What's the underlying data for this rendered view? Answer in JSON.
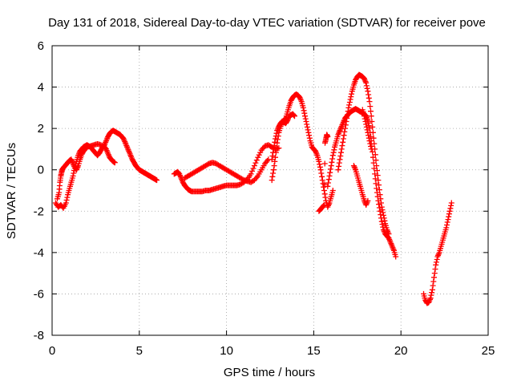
{
  "chart_data": {
    "type": "scatter",
    "title": "Day 131 of 2018, Sidereal Day-to-day VTEC variation (SDTVAR) for receiver pove",
    "xlabel": "GPS time / hours",
    "ylabel": "SDTVAR / TECUs",
    "xlim": [
      0,
      25
    ],
    "ylim": [
      -8,
      6
    ],
    "xticks": [
      "0",
      "5",
      "10",
      "15",
      "20",
      "25"
    ],
    "yticks": [
      "-8",
      "-6",
      "-4",
      "-2",
      "0",
      "2",
      "4",
      "6"
    ],
    "grid": true,
    "legend": "none",
    "marker": "plus",
    "color": "#ff0000",
    "series": [
      {
        "values": [
          [
            0.2,
            -1.6
          ],
          [
            0.35,
            -1.8
          ],
          [
            0.5,
            -1.7
          ],
          [
            0.65,
            -1.85
          ],
          [
            0.8,
            -1.6
          ],
          [
            0.9,
            -1.2
          ],
          [
            1.0,
            -0.9
          ],
          [
            1.1,
            -0.6
          ],
          [
            1.2,
            -0.3
          ],
          [
            1.3,
            0.1
          ],
          [
            1.4,
            0.4
          ],
          [
            1.5,
            0.7
          ],
          [
            1.6,
            0.9
          ],
          [
            1.7,
            1.0
          ],
          [
            1.8,
            1.1
          ],
          [
            1.9,
            1.15
          ],
          [
            2.0,
            1.2
          ],
          [
            2.1,
            1.15
          ],
          [
            2.2,
            1.1
          ],
          [
            2.3,
            1.0
          ],
          [
            2.4,
            0.9
          ],
          [
            2.5,
            0.8
          ],
          [
            2.6,
            0.7
          ],
          [
            2.7,
            0.8
          ],
          [
            2.8,
            0.95
          ],
          [
            2.9,
            1.1
          ],
          [
            3.0,
            1.2
          ],
          [
            3.1,
            1.4
          ],
          [
            3.2,
            1.6
          ],
          [
            3.3,
            1.75
          ],
          [
            3.4,
            1.85
          ],
          [
            3.5,
            1.9
          ],
          [
            3.6,
            1.85
          ],
          [
            3.7,
            1.8
          ],
          [
            3.8,
            1.75
          ],
          [
            3.9,
            1.7
          ],
          [
            4.0,
            1.6
          ],
          [
            4.1,
            1.5
          ],
          [
            4.2,
            1.3
          ],
          [
            4.3,
            1.1
          ],
          [
            4.4,
            0.9
          ],
          [
            4.5,
            0.7
          ],
          [
            4.6,
            0.5
          ],
          [
            4.7,
            0.35
          ],
          [
            4.8,
            0.2
          ],
          [
            4.9,
            0.1
          ],
          [
            5.0,
            0.0
          ],
          [
            5.1,
            -0.05
          ],
          [
            5.2,
            -0.1
          ],
          [
            5.3,
            -0.15
          ],
          [
            5.4,
            -0.2
          ],
          [
            5.5,
            -0.25
          ],
          [
            5.6,
            -0.3
          ],
          [
            5.7,
            -0.35
          ],
          [
            5.8,
            -0.4
          ],
          [
            5.9,
            -0.45
          ],
          [
            6.0,
            -0.5
          ]
        ]
      },
      {
        "values": [
          [
            0.3,
            -1.4
          ],
          [
            0.4,
            -1.1
          ],
          [
            0.45,
            -0.6
          ],
          [
            0.5,
            -0.3
          ],
          [
            0.55,
            -0.1
          ],
          [
            0.6,
            0.05
          ],
          [
            0.7,
            0.15
          ],
          [
            0.8,
            0.25
          ],
          [
            0.9,
            0.35
          ],
          [
            1.0,
            0.45
          ],
          [
            1.1,
            0.5
          ],
          [
            1.2,
            0.3
          ],
          [
            1.3,
            0.1
          ],
          [
            1.4,
            0.0
          ],
          [
            1.5,
            0.2
          ],
          [
            1.6,
            0.5
          ],
          [
            1.7,
            0.75
          ],
          [
            1.8,
            0.9
          ],
          [
            1.9,
            1.0
          ],
          [
            2.0,
            1.1
          ],
          [
            2.2,
            1.15
          ],
          [
            2.4,
            1.2
          ],
          [
            2.6,
            1.25
          ],
          [
            2.8,
            1.2
          ],
          [
            3.0,
            1.1
          ],
          [
            3.1,
            1.0
          ],
          [
            3.2,
            0.8
          ],
          [
            3.3,
            0.6
          ],
          [
            3.4,
            0.5
          ],
          [
            3.5,
            0.4
          ],
          [
            3.6,
            0.35
          ]
        ]
      },
      {
        "values": [
          [
            7.0,
            -0.2
          ],
          [
            7.1,
            -0.15
          ],
          [
            7.2,
            -0.1
          ],
          [
            7.3,
            -0.2
          ],
          [
            7.4,
            -0.4
          ],
          [
            7.5,
            -0.6
          ],
          [
            7.6,
            -0.75
          ],
          [
            7.7,
            -0.85
          ],
          [
            7.8,
            -0.95
          ],
          [
            7.9,
            -1.0
          ],
          [
            8.0,
            -1.05
          ],
          [
            8.2,
            -1.05
          ],
          [
            8.4,
            -1.05
          ],
          [
            8.6,
            -1.05
          ],
          [
            8.8,
            -1.0
          ],
          [
            9.0,
            -1.0
          ],
          [
            9.2,
            -0.95
          ],
          [
            9.4,
            -0.9
          ],
          [
            9.6,
            -0.85
          ],
          [
            9.8,
            -0.8
          ],
          [
            10.0,
            -0.75
          ],
          [
            10.2,
            -0.75
          ],
          [
            10.4,
            -0.75
          ],
          [
            10.6,
            -0.75
          ],
          [
            10.8,
            -0.7
          ],
          [
            11.0,
            -0.6
          ],
          [
            11.2,
            -0.45
          ],
          [
            11.4,
            -0.2
          ],
          [
            11.6,
            0.2
          ],
          [
            11.8,
            0.6
          ],
          [
            12.0,
            0.95
          ],
          [
            12.2,
            1.15
          ],
          [
            12.4,
            1.2
          ],
          [
            12.6,
            1.1
          ],
          [
            12.8,
            1.0
          ],
          [
            13.0,
            1.05
          ]
        ]
      },
      {
        "values": [
          [
            7.6,
            -0.4
          ],
          [
            7.8,
            -0.3
          ],
          [
            8.0,
            -0.2
          ],
          [
            8.2,
            -0.1
          ],
          [
            8.4,
            0.0
          ],
          [
            8.6,
            0.1
          ],
          [
            8.8,
            0.2
          ],
          [
            9.0,
            0.3
          ],
          [
            9.2,
            0.35
          ],
          [
            9.4,
            0.3
          ],
          [
            9.6,
            0.2
          ],
          [
            9.8,
            0.1
          ],
          [
            10.0,
            0.0
          ],
          [
            10.2,
            -0.1
          ],
          [
            10.4,
            -0.2
          ],
          [
            10.6,
            -0.3
          ],
          [
            10.8,
            -0.4
          ],
          [
            11.0,
            -0.5
          ],
          [
            11.2,
            -0.55
          ],
          [
            11.4,
            -0.6
          ],
          [
            11.6,
            -0.5
          ],
          [
            11.8,
            -0.3
          ],
          [
            12.0,
            0.0
          ],
          [
            12.2,
            0.3
          ],
          [
            12.4,
            0.5
          ]
        ]
      },
      {
        "values": [
          [
            12.6,
            0.5
          ],
          [
            12.7,
            1.0
          ],
          [
            12.8,
            1.5
          ],
          [
            12.9,
            1.9
          ],
          [
            13.0,
            2.1
          ],
          [
            13.1,
            2.25
          ],
          [
            13.2,
            2.35
          ],
          [
            13.3,
            2.3
          ],
          [
            13.4,
            2.25
          ],
          [
            13.5,
            2.4
          ],
          [
            13.6,
            2.6
          ],
          [
            13.7,
            2.65
          ],
          [
            13.8,
            2.7
          ],
          [
            13.9,
            2.6
          ]
        ]
      },
      {
        "values": [
          [
            12.6,
            -0.5
          ],
          [
            12.7,
            0.0
          ],
          [
            12.8,
            0.6
          ],
          [
            12.9,
            1.3
          ],
          [
            13.0,
            1.8
          ],
          [
            13.1,
            2.1
          ],
          [
            13.2,
            2.3
          ],
          [
            13.3,
            2.4
          ],
          [
            13.4,
            2.5
          ],
          [
            13.5,
            2.8
          ],
          [
            13.6,
            3.1
          ],
          [
            13.7,
            3.35
          ],
          [
            13.8,
            3.5
          ],
          [
            13.9,
            3.6
          ],
          [
            14.0,
            3.65
          ],
          [
            14.1,
            3.6
          ],
          [
            14.2,
            3.5
          ],
          [
            14.3,
            3.3
          ],
          [
            14.4,
            3.0
          ],
          [
            14.5,
            2.6
          ],
          [
            14.6,
            2.2
          ],
          [
            14.7,
            1.8
          ],
          [
            14.8,
            1.4
          ],
          [
            14.9,
            1.1
          ],
          [
            15.0,
            1.0
          ],
          [
            15.1,
            0.9
          ],
          [
            15.2,
            0.7
          ],
          [
            15.3,
            0.4
          ],
          [
            15.4,
            0.0
          ],
          [
            15.5,
            -0.5
          ],
          [
            15.6,
            -1.0
          ],
          [
            15.7,
            -1.5
          ],
          [
            15.8,
            -1.8
          ],
          [
            15.9,
            -1.6
          ],
          [
            16.0,
            -1.3
          ],
          [
            16.1,
            -1.0
          ]
        ]
      },
      {
        "values": [
          [
            15.3,
            -2.0
          ],
          [
            15.4,
            -1.9
          ],
          [
            15.5,
            -1.8
          ],
          [
            15.6,
            -1.7
          ],
          [
            15.65,
            1.3
          ],
          [
            15.7,
            1.5
          ],
          [
            15.75,
            1.7
          ],
          [
            15.8,
            1.6
          ]
        ]
      },
      {
        "values": [
          [
            15.8,
            -0.8
          ],
          [
            15.9,
            -0.3
          ],
          [
            16.0,
            0.2
          ],
          [
            16.1,
            0.7
          ],
          [
            16.2,
            1.1
          ],
          [
            16.3,
            1.4
          ],
          [
            16.4,
            1.7
          ],
          [
            16.5,
            1.9
          ],
          [
            16.6,
            2.1
          ],
          [
            16.7,
            2.3
          ],
          [
            16.8,
            2.5
          ],
          [
            16.9,
            2.6
          ],
          [
            17.0,
            2.7
          ],
          [
            17.1,
            2.8
          ],
          [
            17.2,
            2.85
          ],
          [
            17.3,
            2.9
          ],
          [
            17.4,
            2.95
          ],
          [
            17.5,
            2.9
          ],
          [
            17.6,
            2.85
          ],
          [
            17.7,
            2.8
          ],
          [
            17.8,
            2.75
          ],
          [
            17.9,
            2.7
          ],
          [
            18.0,
            2.6
          ],
          [
            18.1,
            2.4
          ],
          [
            18.2,
            2.0
          ],
          [
            18.3,
            1.4
          ],
          [
            18.4,
            0.6
          ],
          [
            18.5,
            -0.2
          ],
          [
            18.6,
            -0.9
          ],
          [
            18.7,
            -1.5
          ],
          [
            18.8,
            -2.0
          ],
          [
            18.9,
            -2.5
          ],
          [
            19.0,
            -2.9
          ],
          [
            19.1,
            -3.1
          ],
          [
            19.2,
            -3.2
          ],
          [
            19.3,
            -3.3
          ],
          [
            19.4,
            -3.5
          ],
          [
            19.5,
            -3.7
          ],
          [
            19.6,
            -3.9
          ],
          [
            19.7,
            -4.2
          ]
        ]
      },
      {
        "values": [
          [
            16.4,
            0.0
          ],
          [
            16.5,
            0.5
          ],
          [
            16.6,
            1.0
          ],
          [
            16.7,
            1.5
          ],
          [
            16.8,
            2.0
          ],
          [
            16.9,
            2.5
          ],
          [
            17.0,
            3.0
          ],
          [
            17.1,
            3.4
          ],
          [
            17.2,
            3.8
          ],
          [
            17.3,
            4.1
          ],
          [
            17.4,
            4.35
          ],
          [
            17.5,
            4.5
          ],
          [
            17.6,
            4.6
          ],
          [
            17.7,
            4.55
          ],
          [
            17.8,
            4.5
          ],
          [
            17.9,
            4.4
          ],
          [
            18.0,
            4.2
          ],
          [
            18.1,
            3.8
          ],
          [
            18.2,
            3.3
          ],
          [
            18.3,
            2.6
          ],
          [
            18.4,
            1.8
          ],
          [
            18.5,
            1.0
          ],
          [
            18.6,
            0.2
          ],
          [
            18.7,
            -0.5
          ],
          [
            18.8,
            -1.2
          ],
          [
            18.9,
            -1.8
          ],
          [
            19.0,
            -2.2
          ],
          [
            19.1,
            -2.6
          ],
          [
            19.2,
            -2.9
          ],
          [
            19.3,
            -3.1
          ]
        ]
      },
      {
        "values": [
          [
            17.3,
            0.2
          ],
          [
            17.4,
            0.0
          ],
          [
            17.5,
            -0.3
          ],
          [
            17.6,
            -0.6
          ],
          [
            17.7,
            -0.9
          ],
          [
            17.8,
            -1.2
          ],
          [
            17.9,
            -1.5
          ],
          [
            18.0,
            -1.7
          ],
          [
            18.1,
            -1.5
          ]
        ]
      },
      {
        "values": [
          [
            17.8,
            2.9
          ],
          [
            17.9,
            2.6
          ],
          [
            18.0,
            2.2
          ],
          [
            18.1,
            1.8
          ],
          [
            18.2,
            1.4
          ],
          [
            18.3,
            1.0
          ]
        ]
      },
      {
        "values": [
          [
            21.3,
            -6.0
          ],
          [
            21.4,
            -6.3
          ],
          [
            21.5,
            -6.45
          ],
          [
            21.6,
            -6.4
          ],
          [
            21.7,
            -6.2
          ],
          [
            21.8,
            -5.8
          ],
          [
            21.9,
            -5.2
          ],
          [
            22.0,
            -4.6
          ],
          [
            22.1,
            -4.2
          ],
          [
            22.2,
            -4.0
          ],
          [
            22.3,
            -3.7
          ],
          [
            22.4,
            -3.4
          ],
          [
            22.5,
            -3.1
          ],
          [
            22.6,
            -2.8
          ],
          [
            22.7,
            -2.4
          ],
          [
            22.8,
            -2.0
          ],
          [
            22.9,
            -1.6
          ]
        ]
      }
    ]
  }
}
